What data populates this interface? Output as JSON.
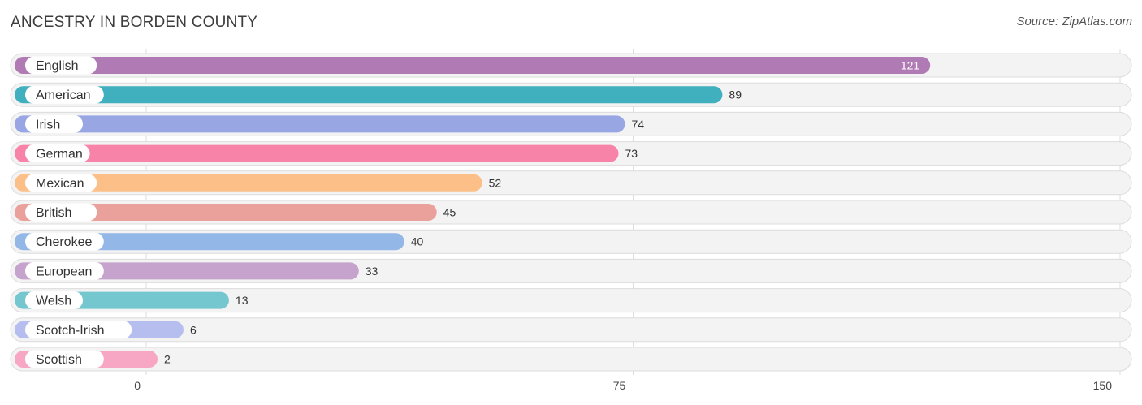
{
  "title": "ANCESTRY IN BORDEN COUNTY",
  "source": "Source: ZipAtlas.com",
  "chart_data": {
    "type": "bar",
    "orientation": "horizontal",
    "title": "ANCESTRY IN BORDEN COUNTY",
    "categories": [
      "English",
      "American",
      "Irish",
      "German",
      "Mexican",
      "British",
      "Cherokee",
      "European",
      "Welsh",
      "Scotch-Irish",
      "Scottish"
    ],
    "values": [
      121,
      89,
      74,
      73,
      52,
      45,
      40,
      33,
      13,
      6,
      2
    ],
    "colors": [
      "#b07ab4",
      "#40b0bf",
      "#98a6e4",
      "#f783a8",
      "#fbbf87",
      "#eba19b",
      "#93b8e8",
      "#c5a3cc",
      "#74c7cf",
      "#b6bef0",
      "#f7a7c3"
    ],
    "xlim": [
      0,
      150
    ],
    "ticks": [
      0,
      75,
      150
    ],
    "grid": true,
    "legend": "none"
  }
}
